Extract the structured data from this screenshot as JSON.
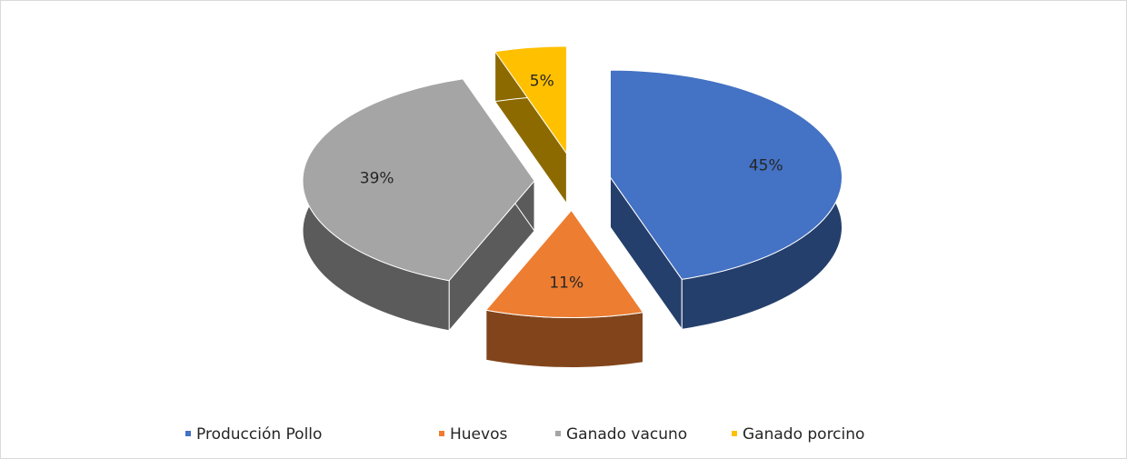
{
  "chart_data": {
    "type": "pie",
    "categories": [
      "Producción Pollo",
      "Huevos",
      "Ganado vacuno",
      "Ganado porcino"
    ],
    "values": [
      45,
      11,
      39,
      5
    ],
    "value_labels": [
      "45%",
      "11%",
      "39%",
      "5%"
    ],
    "colors": [
      "#4472c4",
      "#ed7d31",
      "#a5a5a5",
      "#ffc000"
    ],
    "legend": "bottom"
  }
}
